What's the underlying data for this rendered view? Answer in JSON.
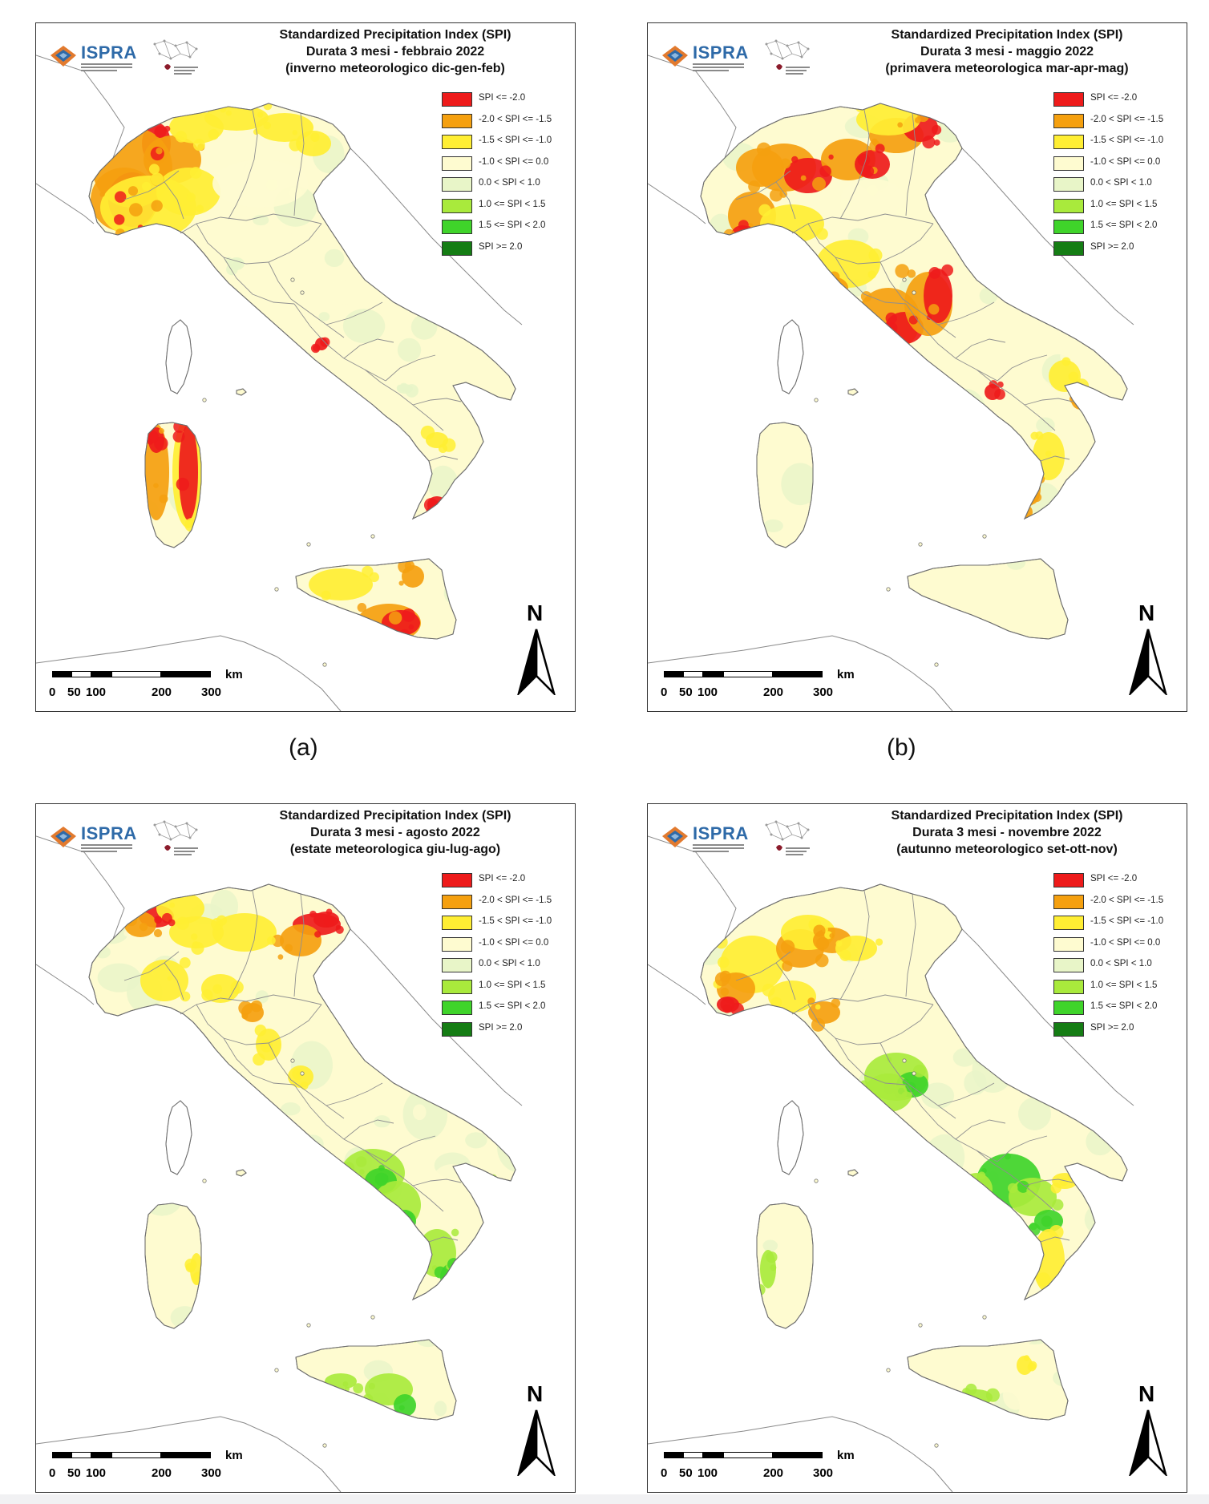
{
  "legend": [
    {
      "label": "SPI <= -2.0",
      "color": "#ee1b1b"
    },
    {
      "label": "-2.0 < SPI <= -1.5",
      "color": "#f5a00f"
    },
    {
      "label": "-1.5 < SPI <= -1.0",
      "color": "#ffee33"
    },
    {
      "label": "-1.0 < SPI <= 0.0",
      "color": "#fefbd0"
    },
    {
      "label": "0.0 < SPI < 1.0",
      "color": "#e8f5c8"
    },
    {
      "label": "1.0 <= SPI < 1.5",
      "color": "#a9ea3c"
    },
    {
      "label": "1.5 <= SPI < 2.0",
      "color": "#3fd42a"
    },
    {
      "label": "SPI >= 2.0",
      "color": "#157d14"
    }
  ],
  "logo": {
    "name": "ISPRA"
  },
  "scale": {
    "unit": "km",
    "ticks": [
      "0",
      "50",
      "100",
      "200",
      "300"
    ]
  },
  "north": "N",
  "panels": [
    {
      "caption": "(a)",
      "title_1": "Standardized Precipitation  Index (SPI)",
      "title_2": "Durata 3 mesi - febbraio 2022",
      "title_3": "(inverno meteorologico dic-gen-feb)"
    },
    {
      "caption": "(b)",
      "title_1": "Standardized Precipitation  Index (SPI)",
      "title_2": "Durata 3 mesi - maggio 2022",
      "title_3": "(primavera meteorologica mar-apr-mag)"
    },
    {
      "caption": "",
      "title_1": "Standardized Precipitation  Index (SPI)",
      "title_2": "Durata 3 mesi - agosto 2022",
      "title_3": "(estate meteorologica giu-lug-ago)"
    },
    {
      "caption": "",
      "title_1": "Standardized Precipitation  Index (SPI)",
      "title_2": "Durata 3 mesi - novembre 2022",
      "title_3": "(autunno meteorologico set-ott-nov)"
    }
  ]
}
